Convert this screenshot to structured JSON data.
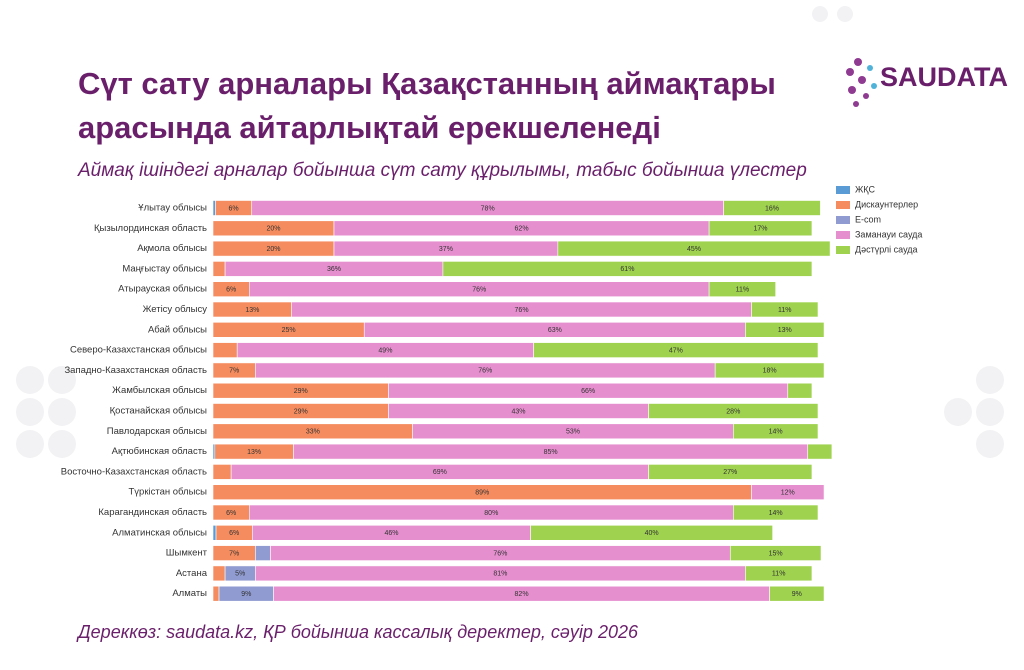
{
  "brand": "SAUDATA",
  "chart_data": {
    "type": "bar",
    "orientation": "horizontal",
    "stacked": true,
    "title": "Сүт сату арналары Қазақстанның аймақтары арасында айтарлықтай ерекшеленеді",
    "subtitle": "Аймақ ішіндегі арналар бойынша сүт сату құрылымы, табыс бойынша үлестер",
    "source": "Дереккөз: saudata.kz, ҚР бойынша кассалық деректер, сәуір 2026",
    "legend": "upper right",
    "xlim": [
      0,
      100
    ],
    "categories": [
      "Ұлытау облысы",
      "Қызылординская область",
      "Ақмола облысы",
      "Маңғыстау облысы",
      "Атырауская облысы",
      "Жетісу облысу",
      "Абай облысы",
      "Северо-Казахстанская облысы",
      "Западно-Казахстанская область",
      "Жамбылская облысы",
      "Қостанайская облысы",
      "Павлодарская облысы",
      "Ақтюбинская область",
      "Восточно-Казахстанская область",
      "Түркістан облысы",
      "Карагандинская область",
      "Алматинская облысы",
      "Шымкент",
      "Астана",
      "Алматы"
    ],
    "series": [
      {
        "name": "ЖҚС",
        "color": "#5b9bd5",
        "values": [
          0.4,
          0,
          0,
          0,
          0,
          0,
          0,
          0,
          0,
          0,
          0,
          0,
          0.3,
          0,
          0,
          0,
          0.5,
          0,
          0,
          0
        ],
        "value_labels": [
          null,
          null,
          null,
          null,
          null,
          null,
          null,
          null,
          null,
          null,
          null,
          null,
          null,
          null,
          null,
          null,
          null,
          null,
          null,
          null
        ]
      },
      {
        "name": "Дискаунтерлер",
        "color": "#f58c5f",
        "values": [
          6,
          20,
          20,
          2,
          6,
          13,
          25,
          4,
          7,
          29,
          29,
          33,
          13,
          3,
          89,
          6,
          6,
          7,
          2,
          1
        ],
        "value_labels": [
          "6%",
          "20%",
          "20%",
          null,
          "6%",
          "13%",
          "25%",
          null,
          "7%",
          "29%",
          "29%",
          "33%",
          "13%",
          null,
          "89%",
          "6%",
          "6%",
          "7%",
          null,
          null
        ]
      },
      {
        "name": "E-com",
        "color": "#8f9bd1",
        "values": [
          0,
          0,
          0,
          0,
          0,
          0,
          0,
          0,
          0,
          0,
          0,
          0,
          0,
          0,
          0,
          0,
          0,
          2.5,
          5,
          9
        ],
        "value_labels": [
          null,
          null,
          null,
          null,
          null,
          null,
          null,
          null,
          null,
          null,
          null,
          null,
          null,
          null,
          null,
          null,
          null,
          null,
          "5%",
          "9%"
        ]
      },
      {
        "name": "Заманауи сауда",
        "color": "#e68fcf",
        "values": [
          78,
          62,
          37,
          36,
          76,
          76,
          63,
          49,
          76,
          66,
          43,
          53,
          85,
          69,
          12,
          80,
          46,
          76,
          81,
          82
        ],
        "value_labels": [
          "78%",
          "62%",
          "37%",
          "36%",
          "76%",
          "76%",
          "63%",
          "49%",
          "76%",
          "66%",
          "43%",
          "53%",
          "85%",
          "69%",
          "12%",
          "80%",
          "46%",
          "76%",
          "81%",
          "82%"
        ]
      },
      {
        "name": "Дәстүрлі сауда",
        "color": "#9fd24f",
        "values": [
          16,
          17,
          45,
          61,
          11,
          11,
          13,
          47,
          18,
          4,
          28,
          14,
          4,
          27,
          0,
          14,
          40,
          15,
          11,
          9
        ],
        "value_labels": [
          "16%",
          "17%",
          "45%",
          "61%",
          "11%",
          "11%",
          "13%",
          "47%",
          "18%",
          null,
          "28%",
          "14%",
          null,
          "27%",
          null,
          "14%",
          "40%",
          "15%",
          "11%",
          "9%"
        ]
      }
    ]
  }
}
